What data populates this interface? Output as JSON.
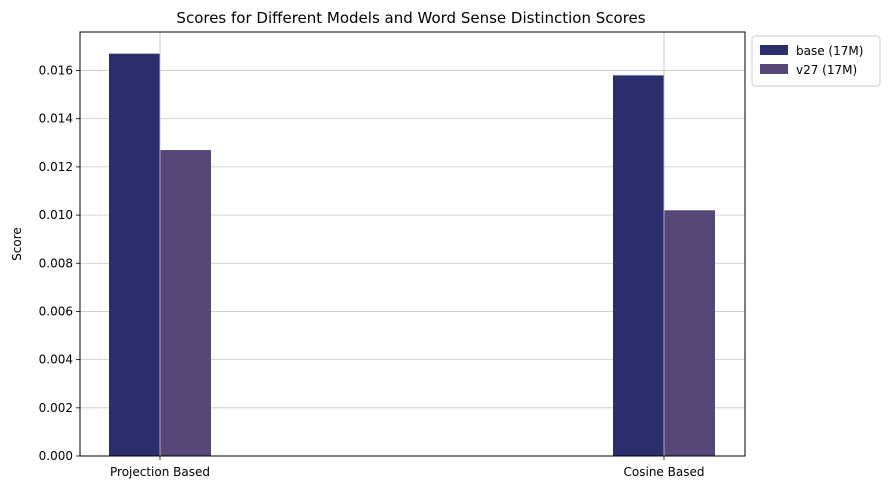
{
  "chart_data": {
    "type": "bar",
    "title": "Scores for Different Models and Word Sense Distinction Scores",
    "xlabel": "",
    "ylabel": "Score",
    "categories": [
      "Projection Based",
      "Cosine Based"
    ],
    "series": [
      {
        "name": "base (17M)",
        "values": [
          0.0167,
          0.0158
        ],
        "color": "#2b2e6c"
      },
      {
        "name": "v27 (17M)",
        "values": [
          0.0127,
          0.0102
        ],
        "color": "#574778"
      }
    ],
    "ylim": [
      0,
      0.0176
    ],
    "yticks": [
      "0.000",
      "0.002",
      "0.004",
      "0.006",
      "0.008",
      "0.010",
      "0.012",
      "0.014",
      "0.016"
    ],
    "grid": true,
    "legend_position": "outside-top-right"
  }
}
